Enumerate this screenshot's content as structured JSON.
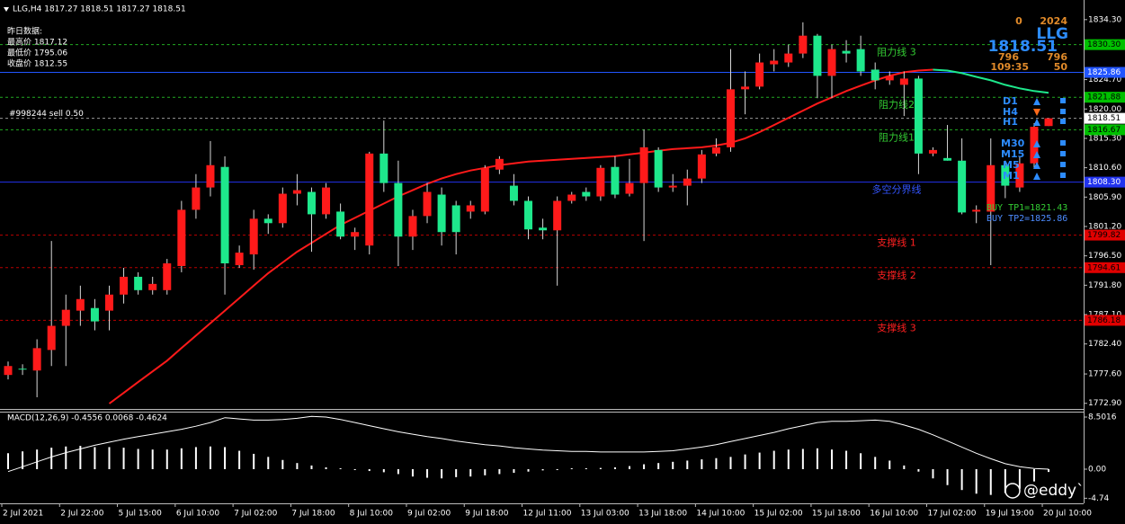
{
  "chart_data": [
    {
      "type": "candlestick",
      "title": "LLG,H4  1817.27 1818.51 1817.27 1818.51",
      "prev_day": [
        "昨日数据:",
        "最高价 1817.12",
        "最低价 1795.06",
        "收盘价 1812.55"
      ],
      "info_panel": {
        "top_left": "0",
        "top_right": "2024",
        "symbol": "LLG",
        "price": "1818.51",
        "mid_left": "796",
        "mid_right": "796",
        "bottom_left": "109:35",
        "bottom_right": "50"
      },
      "signals": [
        "D1",
        "H4",
        "H1",
        "M30",
        "M15",
        "M5",
        "M1"
      ],
      "tp_labels": [
        "BUY TP1=1821.43",
        "BUY TP2=1825.86"
      ],
      "watermark": "@eddy`",
      "up_color": "#ff1a1a",
      "down_color": "#1ee88c",
      "wick_color": "#d8d8d8",
      "ylim": [
        1772.0,
        1837.44
      ],
      "yticks": [
        {
          "value": 1834.3,
          "label": "1834.30"
        },
        {
          "value": 1824.7,
          "label": "1824.70"
        },
        {
          "value": 1820.0,
          "label": "1820.00"
        },
        {
          "value": 1815.3,
          "label": "1815.30"
        },
        {
          "value": 1810.6,
          "label": "1810.60"
        },
        {
          "value": 1805.9,
          "label": "1805.90"
        },
        {
          "value": 1801.2,
          "label": "1801.20"
        },
        {
          "value": 1796.5,
          "label": "1796.50"
        },
        {
          "value": 1791.8,
          "label": "1791.80"
        },
        {
          "value": 1787.1,
          "label": "1787.10"
        },
        {
          "value": 1782.4,
          "label": "1782.40"
        },
        {
          "value": 1777.6,
          "label": "1777.60"
        },
        {
          "value": 1772.9,
          "label": "1772.90"
        }
      ],
      "x": [
        "2 Jul 2021",
        null,
        null,
        null,
        "2 Jul 22:00",
        null,
        null,
        null,
        "5 Jul 15:00",
        null,
        null,
        null,
        "6 Jul 10:00",
        null,
        null,
        null,
        "7 Jul 02:00",
        null,
        null,
        null,
        "7 Jul 18:00",
        null,
        null,
        null,
        "8 Jul 10:00",
        null,
        null,
        null,
        "9 Jul 02:00",
        null,
        null,
        null,
        "9 Jul 18:00",
        null,
        null,
        null,
        "12 Jul 11:00",
        null,
        null,
        null,
        "13 Jul 03:00",
        null,
        null,
        null,
        "13 Jul 18:00",
        null,
        null,
        null,
        "14 Jul 10:00",
        null,
        null,
        null,
        "15 Jul 02:00",
        null,
        null,
        null,
        "15 Jul 18:00",
        null,
        null,
        null,
        "16 Jul 10:00",
        null,
        null,
        null,
        "17 Jul 02:00",
        null,
        null,
        null,
        "19 Jul 19:00",
        null,
        null,
        null,
        "20 Jul 10:00"
      ],
      "ohlc": [
        [
          1777.44,
          1779.58,
          1776.73,
          1778.87
        ],
        [
          1778.44,
          1779.15,
          1777.44,
          1778.3
        ],
        [
          1778.15,
          1783.15,
          1773.87,
          1781.73
        ],
        [
          1781.44,
          1798.87,
          1778.87,
          1785.3
        ],
        [
          1785.3,
          1790.3,
          1778.87,
          1787.87
        ],
        [
          1787.73,
          1791.73,
          1785.3,
          1789.58
        ],
        [
          1788.15,
          1789.58,
          1784.58,
          1786.01
        ],
        [
          1787.73,
          1791.73,
          1784.58,
          1790.3
        ],
        [
          1790.3,
          1794.58,
          1788.87,
          1793.15
        ],
        [
          1793.15,
          1793.87,
          1790.3,
          1791.01
        ],
        [
          1791.01,
          1793.15,
          1790.3,
          1792.01
        ],
        [
          1791.01,
          1796.01,
          1790.3,
          1795.3
        ],
        [
          1794.87,
          1805.3,
          1793.87,
          1803.87
        ],
        [
          1803.87,
          1809.58,
          1802.44,
          1807.44
        ],
        [
          1807.44,
          1814.87,
          1806.01,
          1811.01
        ],
        [
          1810.73,
          1812.44,
          1790.3,
          1795.3
        ],
        [
          1795.01,
          1798.15,
          1794.58,
          1797.01
        ],
        [
          1796.73,
          1803.87,
          1794.3,
          1802.44
        ],
        [
          1802.44,
          1803.15,
          1800.01,
          1801.73
        ],
        [
          1801.73,
          1807.44,
          1801.01,
          1806.44
        ],
        [
          1806.44,
          1809.58,
          1804.58,
          1807.01
        ],
        [
          1806.73,
          1807.44,
          1797.15,
          1803.15
        ],
        [
          1803.15,
          1808.15,
          1802.44,
          1807.44
        ],
        [
          1803.58,
          1804.87,
          1799.15,
          1799.58
        ],
        [
          1799.58,
          1801.01,
          1797.44,
          1800.3
        ],
        [
          1798.15,
          1813.15,
          1796.73,
          1812.87
        ],
        [
          1812.87,
          1818.15,
          1806.73,
          1808.15
        ],
        [
          1808.15,
          1811.73,
          1794.87,
          1799.58
        ],
        [
          1799.58,
          1803.87,
          1797.44,
          1802.87
        ],
        [
          1802.87,
          1808.15,
          1801.73,
          1806.73
        ],
        [
          1806.3,
          1807.44,
          1798.15,
          1800.3
        ],
        [
          1804.58,
          1805.3,
          1796.73,
          1800.3
        ],
        [
          1803.58,
          1805.3,
          1802.44,
          1804.58
        ],
        [
          1803.58,
          1811.01,
          1803.15,
          1810.58
        ],
        [
          1810.3,
          1812.44,
          1809.58,
          1812.01
        ],
        [
          1807.73,
          1809.58,
          1804.58,
          1805.3
        ],
        [
          1805.3,
          1806.01,
          1799.15,
          1800.73
        ],
        [
          1801.01,
          1802.44,
          1799.15,
          1800.58
        ],
        [
          1800.58,
          1806.01,
          1791.73,
          1805.3
        ],
        [
          1805.3,
          1806.73,
          1804.87,
          1806.3
        ],
        [
          1806.73,
          1807.44,
          1805.3,
          1806.01
        ],
        [
          1806.01,
          1811.01,
          1805.3,
          1810.58
        ],
        [
          1810.73,
          1812.44,
          1805.73,
          1806.3
        ],
        [
          1806.44,
          1812.01,
          1806.01,
          1808.15
        ],
        [
          1808.15,
          1816.73,
          1798.87,
          1813.87
        ],
        [
          1813.44,
          1813.87,
          1806.73,
          1807.44
        ],
        [
          1807.44,
          1809.58,
          1806.73,
          1807.73
        ],
        [
          1807.73,
          1810.3,
          1804.58,
          1808.87
        ],
        [
          1808.87,
          1813.44,
          1808.15,
          1812.73
        ],
        [
          1812.87,
          1815.3,
          1812.44,
          1813.87
        ],
        [
          1813.87,
          1829.58,
          1813.15,
          1823.15
        ],
        [
          1823.15,
          1826.01,
          1819.15,
          1823.58
        ],
        [
          1823.58,
          1828.87,
          1823.15,
          1827.44
        ],
        [
          1827.15,
          1829.58,
          1826.01,
          1827.73
        ],
        [
          1827.44,
          1830.3,
          1826.73,
          1828.87
        ],
        [
          1828.87,
          1833.87,
          1828.15,
          1831.73
        ],
        [
          1831.73,
          1832.01,
          1821.73,
          1825.3
        ],
        [
          1825.3,
          1830.3,
          1821.73,
          1829.58
        ],
        [
          1829.3,
          1831.01,
          1827.44,
          1828.87
        ],
        [
          1829.58,
          1831.73,
          1825.3,
          1826.01
        ],
        [
          1826.3,
          1827.44,
          1823.15,
          1824.58
        ],
        [
          1824.58,
          1826.01,
          1823.87,
          1825.3
        ],
        [
          1823.87,
          1826.01,
          1818.87,
          1824.87
        ],
        [
          1824.87,
          1825.3,
          1809.58,
          1812.87
        ],
        [
          1812.87,
          1813.87,
          1812.44,
          1813.44
        ],
        [
          1812.15,
          1817.44,
          1811.73,
          1811.73
        ],
        [
          1811.73,
          1815.3,
          1803.15,
          1803.44
        ],
        [
          1803.58,
          1804.58,
          1801.73,
          1803.87
        ],
        [
          1803.58,
          1815.3,
          1795.01,
          1811.01
        ],
        [
          1811.01,
          1811.73,
          1805.73,
          1807.73
        ],
        [
          1807.44,
          1812.44,
          1806.73,
          1811.3
        ],
        [
          1811.3,
          1817.73,
          1810.58,
          1817.15
        ],
        [
          1817.27,
          1818.51,
          1817.27,
          1818.51
        ]
      ],
      "overlays": [
        {
          "color": "#ff1a1a",
          "values": [
            null,
            null,
            null,
            null,
            null,
            null,
            null,
            1772.87,
            1774.58,
            1776.3,
            1778.01,
            1779.73,
            1781.73,
            1783.73,
            1785.73,
            1787.73,
            1789.73,
            1791.73,
            1793.73,
            1795.44,
            1797.15,
            1798.58,
            1800.01,
            1801.44,
            1802.58,
            1803.73,
            1804.87,
            1806.01,
            1807.01,
            1808.01,
            1808.87,
            1809.58,
            1810.15,
            1810.58,
            1811.01,
            1811.3,
            1811.58,
            1811.73,
            1811.87,
            1812.01,
            1812.15,
            1812.3,
            1812.44,
            1812.73,
            1813.01,
            1813.3,
            1813.58,
            1813.73,
            1813.87,
            1814.15,
            1814.58,
            1815.3,
            1816.3,
            1817.44,
            1818.58,
            1819.73,
            1820.87,
            1821.87,
            1822.87,
            1823.73,
            1824.58,
            1825.3,
            1825.87,
            1826.15,
            1826.3,
            null,
            null,
            null,
            null,
            null,
            null,
            null,
            null
          ]
        },
        {
          "color": "#1ee88c",
          "values": [
            null,
            null,
            null,
            null,
            null,
            null,
            null,
            null,
            null,
            null,
            null,
            null,
            null,
            null,
            null,
            null,
            null,
            null,
            null,
            null,
            null,
            null,
            null,
            null,
            null,
            null,
            null,
            null,
            null,
            null,
            null,
            null,
            null,
            null,
            null,
            null,
            null,
            null,
            null,
            null,
            null,
            null,
            null,
            null,
            null,
            null,
            null,
            null,
            null,
            null,
            null,
            null,
            null,
            null,
            null,
            null,
            null,
            null,
            null,
            null,
            null,
            null,
            null,
            null,
            1826.3,
            1826.15,
            1825.73,
            1825.15,
            1824.58,
            1823.87,
            1823.3,
            1822.87,
            1822.58
          ]
        }
      ],
      "hlines": [
        {
          "value": 1830.3,
          "value_label": "1830.30",
          "text": "阻力线 3",
          "color": "#22aa22",
          "style": "dashed",
          "text_color": "#33cc33",
          "box_color": "#00c000",
          "box_text_color": "#000000"
        },
        {
          "value": 1825.86,
          "value_label": "1825.86",
          "color": "#2255ff",
          "style": "solid",
          "box_color": "#2255ff",
          "box_text_color": "#ffffff"
        },
        {
          "value": 1821.88,
          "value_label": "1821.88",
          "text": "阻力线2",
          "color": "#22aa22",
          "style": "dashed",
          "text_color": "#33cc33",
          "box_color": "#00c000",
          "box_text_color": "#000000"
        },
        {
          "value": 1818.51,
          "value_label": "1818.51",
          "text": "#998244 sell 0.50",
          "text_align": "left",
          "color": "#999999",
          "style": "dashed",
          "text_color": "#ffffff",
          "box_color": "#ffffff",
          "box_text_color": "#000000"
        },
        {
          "value": 1816.67,
          "value_label": "1816.67",
          "text": "阻力线1",
          "color": "#22aa22",
          "style": "dashed",
          "text_color": "#33cc33",
          "box_color": "#00c000",
          "box_text_color": "#000000"
        },
        {
          "value": 1808.3,
          "value_label": "1808.30",
          "text": "多空分界线",
          "color": "#2233ee",
          "style": "solid",
          "text_color": "#3355ff",
          "box_color": "#2233ee",
          "box_text_color": "#ffffff"
        },
        {
          "value": 1799.82,
          "value_label": "1799.82",
          "text": "支撑线 1",
          "color": "#bb0000",
          "style": "dashed",
          "text_color": "#ff2020",
          "box_color": "#e00000",
          "box_text_color": "#000000"
        },
        {
          "value": 1794.61,
          "value_label": "1794.61",
          "text": "支撑线 2",
          "color": "#bb0000",
          "style": "dashed",
          "text_color": "#ff2020",
          "box_color": "#e00000",
          "box_text_color": "#000000"
        },
        {
          "value": 1786.18,
          "value_label": "1786.18",
          "text": "支撑线 3",
          "color": "#bb0000",
          "style": "dashed",
          "text_color": "#ff2020",
          "box_color": "#e00000",
          "box_text_color": "#000000"
        }
      ]
    },
    {
      "type": "macd",
      "title": "MACD(12,26,9) -0.4556 0.0068 -0.4624",
      "color": "#ffffff",
      "ylim": [
        -5.57,
        9.38
      ],
      "yticks": [
        8.5016,
        {
          "value": 0,
          "label": "0.00"
        },
        -4.74
      ],
      "values": [
        2.6,
        2.9,
        3.2,
        3.5,
        3.7,
        3.8,
        3.6,
        3.6,
        3.5,
        3.3,
        3.2,
        3.2,
        3.4,
        3.6,
        3.7,
        3.6,
        3.0,
        2.5,
        2.0,
        1.5,
        1.0,
        0.6,
        0.3,
        0.1,
        -0.1,
        -0.3,
        -0.5,
        -0.8,
        -1.2,
        -1.4,
        -1.5,
        -1.3,
        -1.2,
        -1.0,
        -0.8,
        -0.6,
        -0.4,
        -0.2,
        -0.1,
        0.0,
        0.1,
        0.2,
        0.3,
        0.5,
        0.8,
        1.0,
        1.2,
        1.4,
        1.6,
        1.8,
        2.0,
        2.4,
        2.7,
        3.0,
        3.2,
        3.3,
        3.4,
        3.2,
        3.0,
        2.6,
        2.0,
        1.4,
        0.6,
        -0.4,
        -1.5,
        -2.6,
        -3.4,
        -4.0,
        -4.2,
        -3.9,
        -3.2,
        -2.0,
        -0.4556
      ],
      "signal": [
        -0.4,
        0.4,
        1.2,
        2.0,
        2.7,
        3.3,
        3.9,
        4.4,
        4.9,
        5.3,
        5.7,
        6.1,
        6.5,
        7.0,
        7.6,
        8.4,
        8.2,
        8.0,
        8.0,
        8.1,
        8.3,
        8.6,
        8.5,
        8.1,
        7.6,
        7.1,
        6.6,
        6.1,
        5.7,
        5.3,
        5.0,
        4.6,
        4.3,
        4.0,
        3.8,
        3.5,
        3.3,
        3.1,
        3.0,
        2.9,
        2.9,
        2.8,
        2.8,
        2.8,
        2.8,
        2.9,
        3.0,
        3.3,
        3.6,
        4.0,
        4.5,
        5.0,
        5.5,
        6.0,
        6.6,
        7.1,
        7.6,
        7.8,
        7.8,
        7.9,
        8.0,
        7.8,
        7.2,
        6.5,
        5.6,
        4.6,
        3.6,
        2.6,
        1.7,
        0.9,
        0.4,
        0.1,
        0.0068
      ]
    }
  ]
}
